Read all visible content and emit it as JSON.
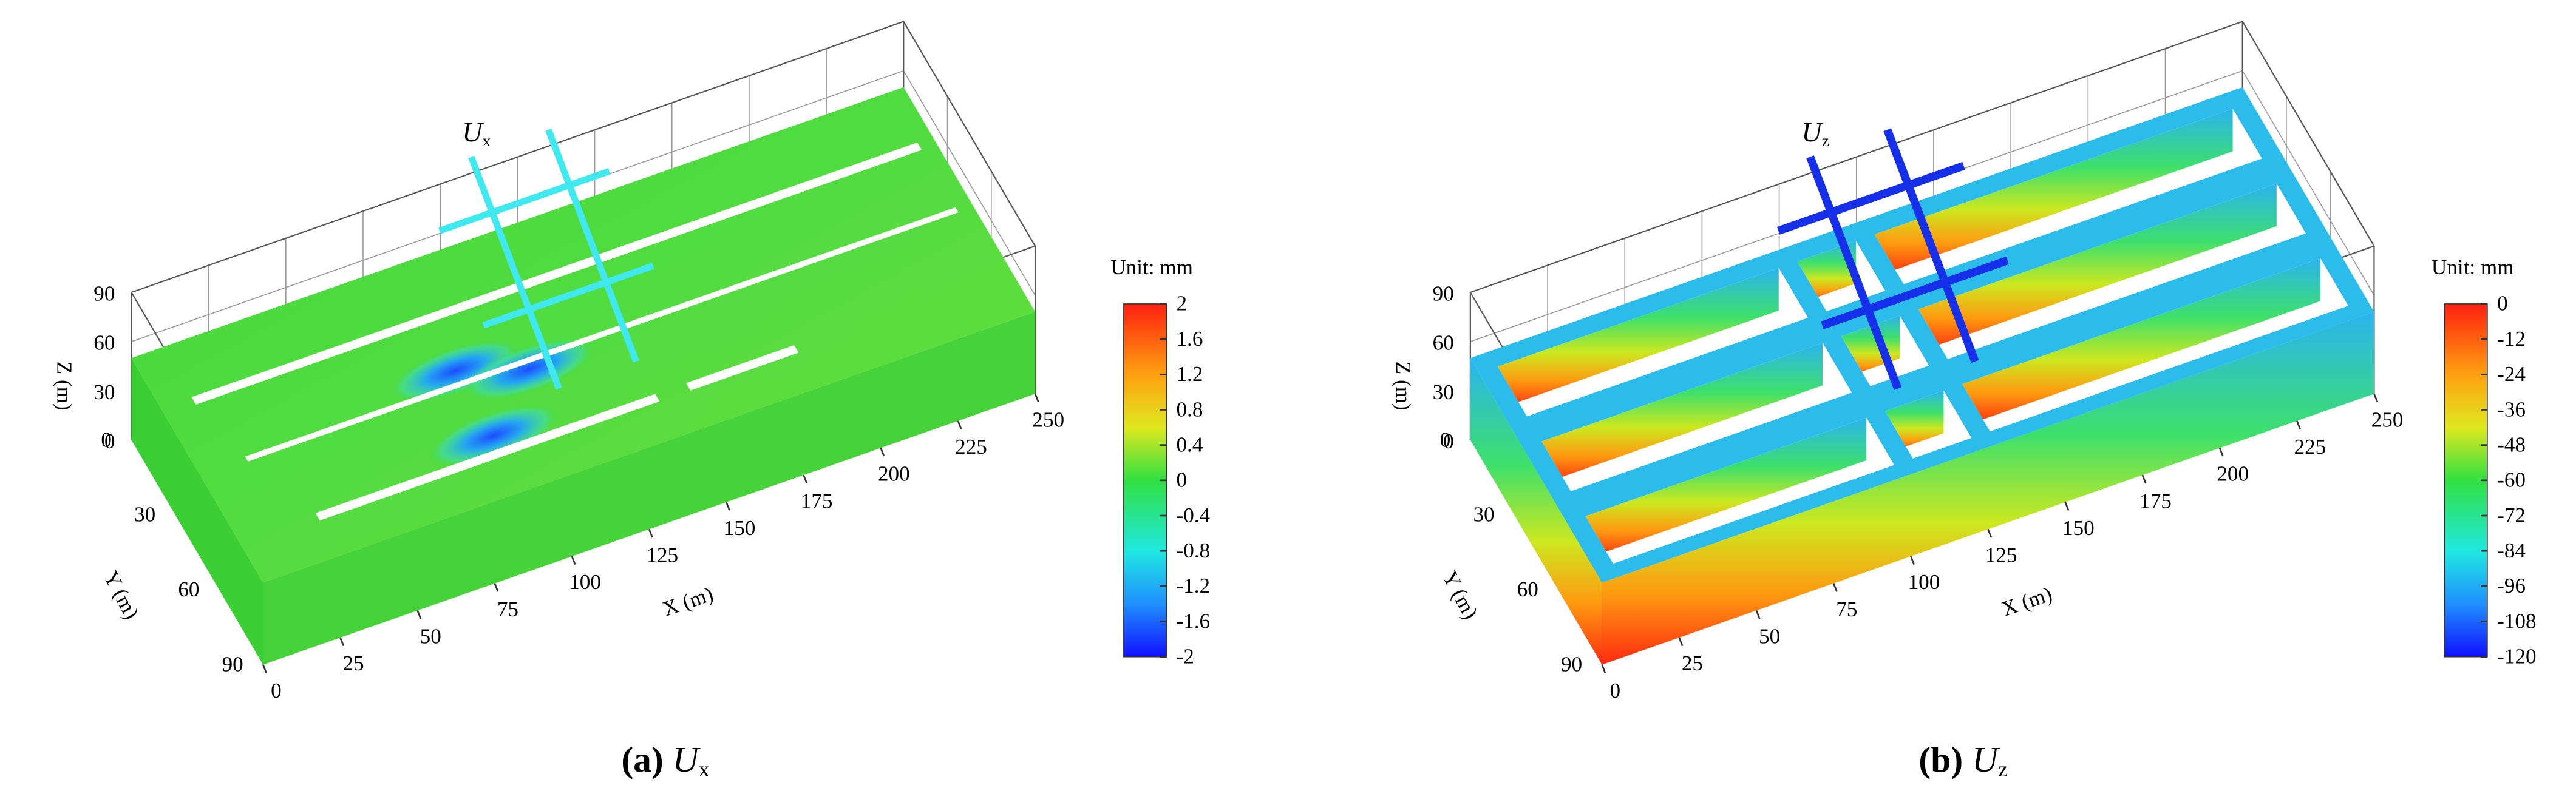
{
  "panels": [
    {
      "plot_label": {
        "symbol": "U",
        "subscript": "x"
      },
      "caption": {
        "letter": "(a)",
        "symbol": "U",
        "subscript": "x"
      },
      "colorbar": {
        "title": "Unit: mm",
        "ticks": [
          2,
          1.6,
          1.2,
          0.8,
          0.4,
          0,
          -0.4,
          -0.8,
          -1.2,
          -1.6,
          -2
        ]
      },
      "axes": {
        "x": {
          "title": "X (m)",
          "ticks": [
            0,
            25,
            50,
            75,
            100,
            125,
            150,
            175,
            200,
            225,
            250
          ]
        },
        "y": {
          "title": "Y (m)",
          "ticks": [
            0,
            30,
            60,
            90
          ]
        },
        "z": {
          "title": "Z (m)",
          "ticks": [
            0,
            30,
            60,
            90
          ]
        }
      }
    },
    {
      "plot_label": {
        "symbol": "U",
        "subscript": "z"
      },
      "caption": {
        "letter": "(b)",
        "symbol": "U",
        "subscript": "z"
      },
      "colorbar": {
        "title": "Unit: mm",
        "ticks": [
          0,
          -12,
          -24,
          -36,
          -48,
          -60,
          -72,
          -84,
          -96,
          -108,
          -120
        ]
      },
      "axes": {
        "x": {
          "title": "X (m)",
          "ticks": [
            0,
            25,
            50,
            75,
            100,
            125,
            150,
            175,
            200,
            225,
            250
          ]
        },
        "y": {
          "title": "Y (m)",
          "ticks": [
            0,
            30,
            60,
            90
          ]
        },
        "z": {
          "title": "Z (m)",
          "ticks": [
            0,
            30,
            60,
            90
          ]
        }
      }
    }
  ]
}
